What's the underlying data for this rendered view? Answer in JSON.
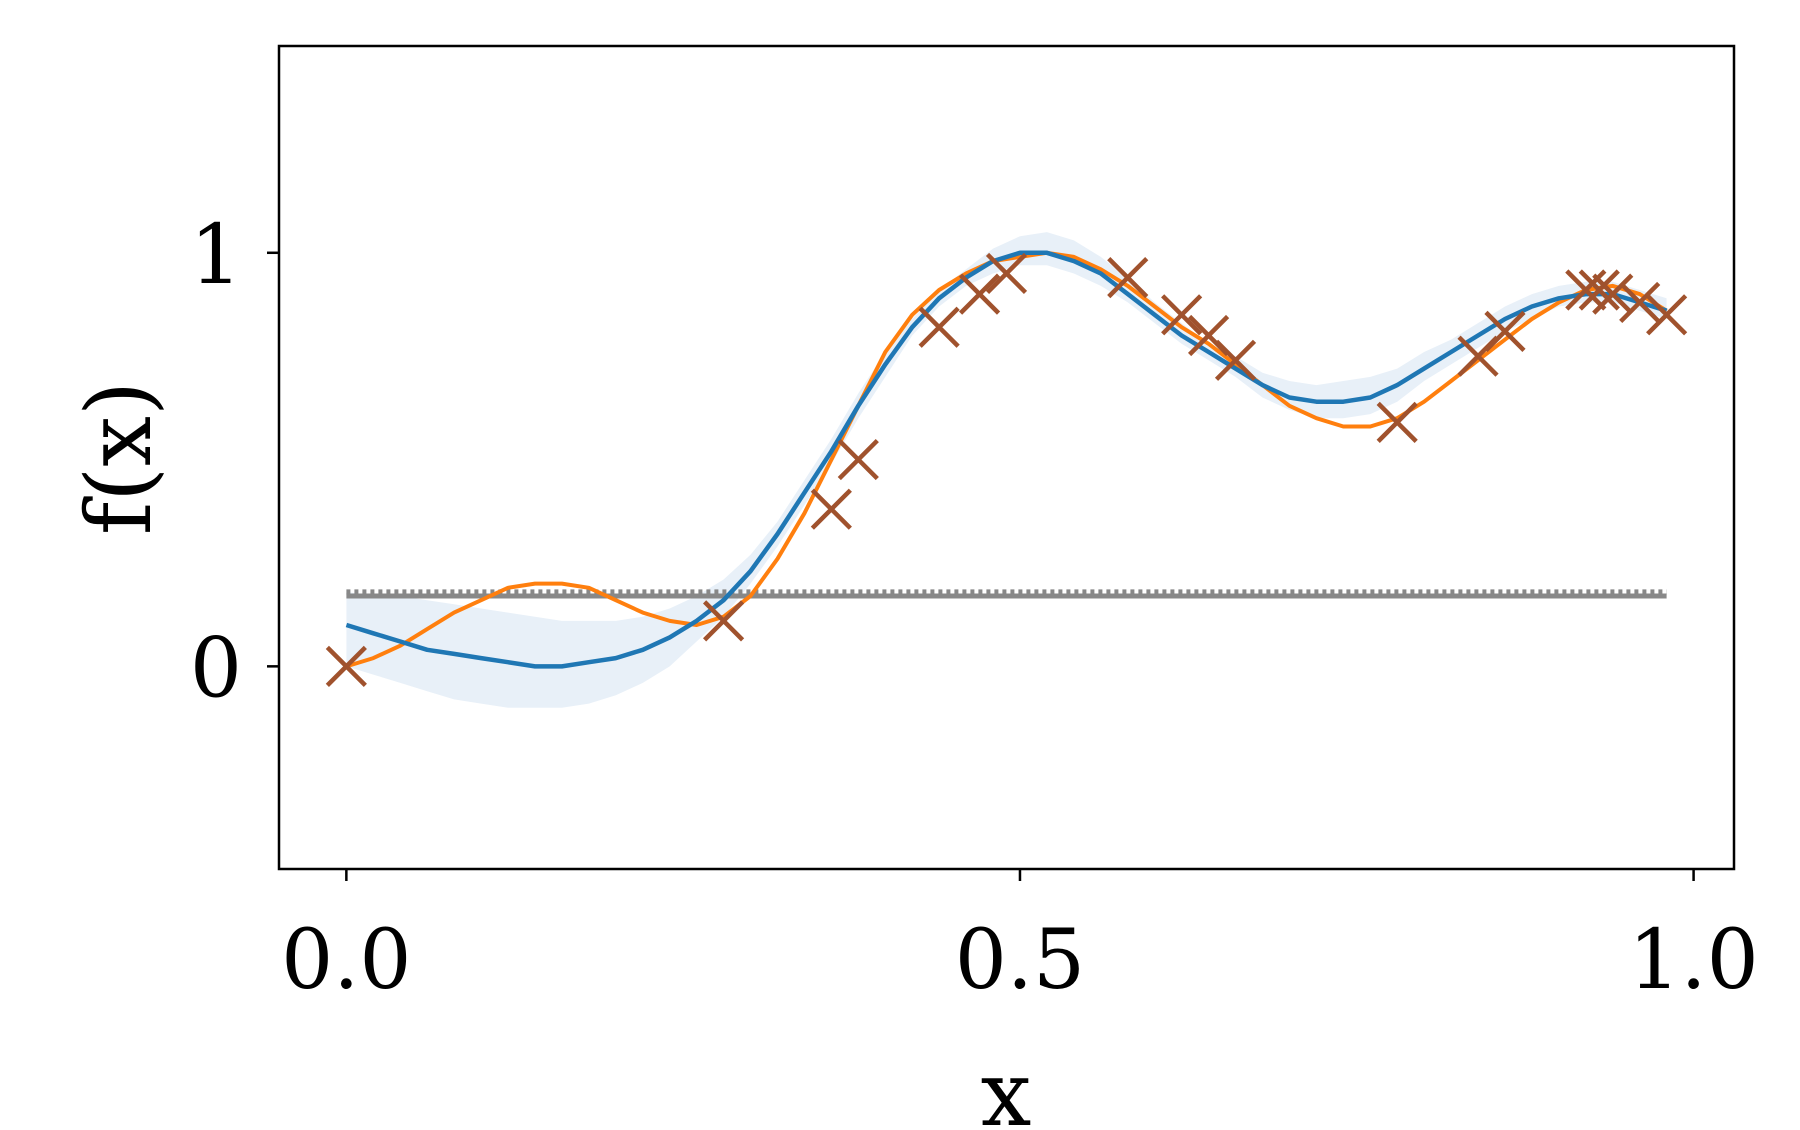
{
  "chart_data": {
    "type": "line",
    "title": "",
    "xlabel": "x",
    "ylabel": "f(x)",
    "xlim": [
      -0.05,
      1.03
    ],
    "ylim": [
      -0.49,
      1.5
    ],
    "x_ticks": [
      {
        "value": 0.0,
        "label": "0.0"
      },
      {
        "value": 0.5,
        "label": "0.5"
      },
      {
        "value": 1.0,
        "label": "1.0"
      }
    ],
    "y_ticks": [
      {
        "value": 0,
        "label": "0"
      },
      {
        "value": 1,
        "label": "1"
      }
    ],
    "grid": false,
    "legend": "none",
    "colors": {
      "true_function": "#ff7f0e",
      "mean": "#1f77b4",
      "band": "#e8f0f8",
      "observations": "#a0522d",
      "threshold": "#888888"
    },
    "series": [
      {
        "kind": "true_function",
        "x": [
          0.0,
          0.02,
          0.04,
          0.06,
          0.08,
          0.1,
          0.12,
          0.14,
          0.16,
          0.18,
          0.2,
          0.22,
          0.24,
          0.26,
          0.28,
          0.3,
          0.32,
          0.34,
          0.36,
          0.38,
          0.4,
          0.42,
          0.44,
          0.46,
          0.48,
          0.5,
          0.52,
          0.54,
          0.56,
          0.58,
          0.6,
          0.62,
          0.64,
          0.66,
          0.68,
          0.7,
          0.72,
          0.74,
          0.76,
          0.78,
          0.8,
          0.82,
          0.84,
          0.86,
          0.88,
          0.9,
          0.92,
          0.94,
          0.96,
          0.98
        ],
        "y": [
          0.0,
          0.02,
          0.05,
          0.09,
          0.13,
          0.16,
          0.19,
          0.2,
          0.2,
          0.19,
          0.16,
          0.13,
          0.11,
          0.1,
          0.12,
          0.17,
          0.26,
          0.37,
          0.5,
          0.63,
          0.76,
          0.85,
          0.91,
          0.95,
          0.98,
          0.99,
          1.0,
          0.99,
          0.96,
          0.92,
          0.87,
          0.82,
          0.78,
          0.73,
          0.68,
          0.63,
          0.6,
          0.58,
          0.58,
          0.6,
          0.64,
          0.69,
          0.74,
          0.79,
          0.84,
          0.88,
          0.91,
          0.92,
          0.9,
          0.86
        ]
      },
      {
        "kind": "mean",
        "x": [
          0.0,
          0.02,
          0.04,
          0.06,
          0.08,
          0.1,
          0.12,
          0.14,
          0.16,
          0.18,
          0.2,
          0.22,
          0.24,
          0.26,
          0.28,
          0.3,
          0.32,
          0.34,
          0.36,
          0.38,
          0.4,
          0.42,
          0.44,
          0.46,
          0.48,
          0.5,
          0.52,
          0.54,
          0.56,
          0.58,
          0.6,
          0.62,
          0.64,
          0.66,
          0.68,
          0.7,
          0.72,
          0.74,
          0.76,
          0.78,
          0.8,
          0.82,
          0.84,
          0.86,
          0.88,
          0.9,
          0.92,
          0.94,
          0.96,
          0.98
        ],
        "y": [
          0.1,
          0.08,
          0.06,
          0.04,
          0.03,
          0.02,
          0.01,
          0.0,
          0.0,
          0.01,
          0.02,
          0.04,
          0.07,
          0.11,
          0.16,
          0.23,
          0.32,
          0.42,
          0.52,
          0.63,
          0.73,
          0.82,
          0.89,
          0.94,
          0.98,
          1.0,
          1.0,
          0.98,
          0.95,
          0.9,
          0.85,
          0.8,
          0.76,
          0.72,
          0.68,
          0.65,
          0.64,
          0.64,
          0.65,
          0.68,
          0.72,
          0.76,
          0.8,
          0.84,
          0.87,
          0.89,
          0.9,
          0.9,
          0.88,
          0.86
        ]
      },
      {
        "kind": "confidence_band",
        "x": [
          0.0,
          0.02,
          0.04,
          0.06,
          0.08,
          0.1,
          0.12,
          0.14,
          0.16,
          0.18,
          0.2,
          0.22,
          0.24,
          0.26,
          0.28,
          0.3,
          0.32,
          0.34,
          0.36,
          0.38,
          0.4,
          0.42,
          0.44,
          0.46,
          0.48,
          0.5,
          0.52,
          0.54,
          0.56,
          0.58,
          0.6,
          0.62,
          0.64,
          0.66,
          0.68,
          0.7,
          0.72,
          0.74,
          0.76,
          0.78,
          0.8,
          0.82,
          0.84,
          0.86,
          0.88,
          0.9,
          0.92,
          0.94,
          0.96,
          0.98
        ],
        "lower": [
          0.0,
          -0.02,
          -0.04,
          -0.06,
          -0.08,
          -0.09,
          -0.1,
          -0.1,
          -0.1,
          -0.09,
          -0.07,
          -0.04,
          0.0,
          0.06,
          0.12,
          0.2,
          0.29,
          0.39,
          0.49,
          0.6,
          0.7,
          0.8,
          0.87,
          0.92,
          0.95,
          0.97,
          0.97,
          0.95,
          0.92,
          0.88,
          0.83,
          0.78,
          0.74,
          0.7,
          0.65,
          0.62,
          0.6,
          0.6,
          0.61,
          0.64,
          0.69,
          0.73,
          0.77,
          0.81,
          0.84,
          0.87,
          0.88,
          0.88,
          0.86,
          0.84
        ],
        "upper": [
          0.18,
          0.17,
          0.17,
          0.16,
          0.15,
          0.14,
          0.13,
          0.12,
          0.11,
          0.11,
          0.11,
          0.12,
          0.14,
          0.17,
          0.21,
          0.27,
          0.35,
          0.45,
          0.55,
          0.66,
          0.76,
          0.84,
          0.91,
          0.96,
          1.01,
          1.04,
          1.05,
          1.03,
          0.99,
          0.94,
          0.88,
          0.83,
          0.78,
          0.75,
          0.71,
          0.69,
          0.68,
          0.69,
          0.7,
          0.72,
          0.76,
          0.79,
          0.83,
          0.87,
          0.9,
          0.92,
          0.93,
          0.93,
          0.91,
          0.89
        ]
      },
      {
        "kind": "threshold_solid",
        "x": [
          0.0,
          0.98
        ],
        "y": [
          0.17,
          0.17
        ]
      },
      {
        "kind": "threshold_dotted",
        "x": [
          0.0,
          0.98
        ],
        "y": [
          0.18,
          0.18
        ]
      },
      {
        "kind": "observations",
        "marker": "x",
        "x": [
          0.0,
          0.28,
          0.36,
          0.38,
          0.44,
          0.47,
          0.49,
          0.58,
          0.62,
          0.64,
          0.66,
          0.78,
          0.84,
          0.86,
          0.92,
          0.93,
          0.94,
          0.96,
          0.98
        ],
        "y": [
          0.0,
          0.11,
          0.38,
          0.5,
          0.82,
          0.9,
          0.95,
          0.94,
          0.85,
          0.8,
          0.74,
          0.59,
          0.75,
          0.81,
          0.91,
          0.91,
          0.9,
          0.88,
          0.85
        ]
      }
    ]
  }
}
